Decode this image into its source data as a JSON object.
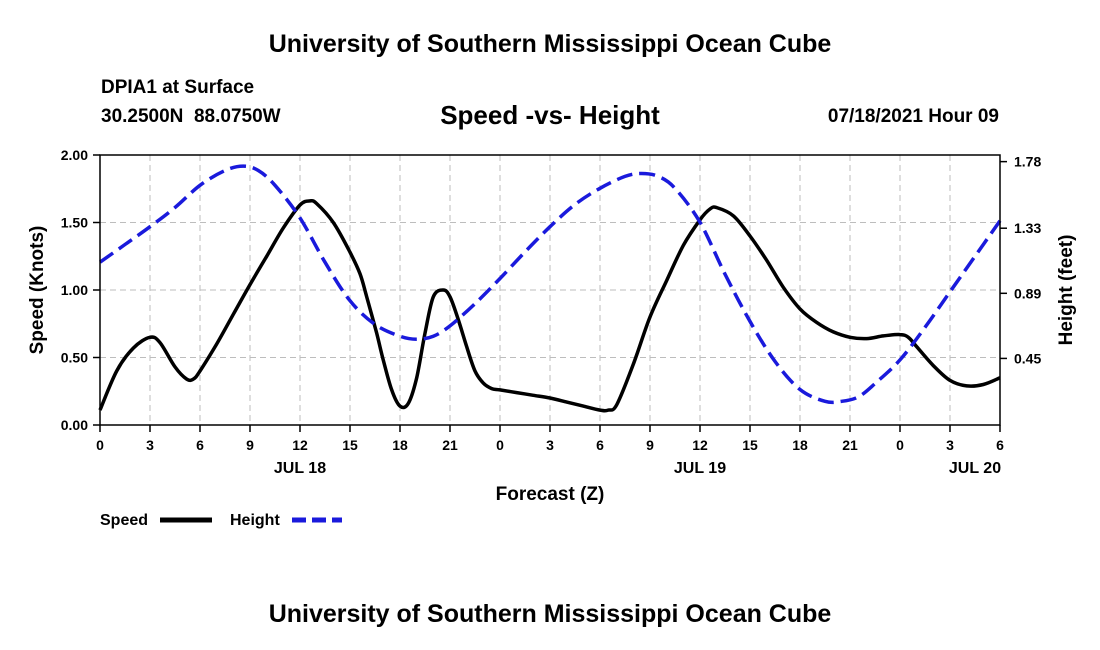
{
  "header": {
    "title": "University of Southern Mississippi Ocean Cube",
    "station": "DPIA1 at Surface",
    "coords": "30.2500N  88.0750W",
    "plot_title": "Speed -vs- Height",
    "datetime": "07/18/2021 Hour 09"
  },
  "footer": {
    "title": "University of Southern Mississippi Ocean Cube"
  },
  "chart_data": {
    "type": "line",
    "title": "Speed -vs- Height",
    "xlabel": "Forecast (Z)",
    "ylabel": "Speed (Knots)",
    "y2label": "Height (feet)",
    "ylim": [
      0,
      2.0
    ],
    "y2lim": [
      0,
      1.8248
    ],
    "x_range_hours": [
      0,
      54
    ],
    "x_ticks": [
      {
        "hour": 0,
        "label": "0"
      },
      {
        "hour": 3,
        "label": "3"
      },
      {
        "hour": 6,
        "label": "6"
      },
      {
        "hour": 9,
        "label": "9"
      },
      {
        "hour": 12,
        "label": "12"
      },
      {
        "hour": 15,
        "label": "15"
      },
      {
        "hour": 18,
        "label": "18"
      },
      {
        "hour": 21,
        "label": "21"
      },
      {
        "hour": 24,
        "label": "0"
      },
      {
        "hour": 27,
        "label": "3"
      },
      {
        "hour": 30,
        "label": "6"
      },
      {
        "hour": 33,
        "label": "9"
      },
      {
        "hour": 36,
        "label": "12"
      },
      {
        "hour": 39,
        "label": "15"
      },
      {
        "hour": 42,
        "label": "18"
      },
      {
        "hour": 45,
        "label": "21"
      },
      {
        "hour": 48,
        "label": "0"
      },
      {
        "hour": 51,
        "label": "3"
      },
      {
        "hour": 54,
        "label": "6"
      }
    ],
    "date_labels": [
      {
        "hour": 12,
        "label": "JUL 18"
      },
      {
        "hour": 36,
        "label": "JUL 19"
      },
      {
        "hour": 52.5,
        "label": "JUL 20"
      }
    ],
    "y_ticks": [
      {
        "value": 0,
        "label": "0.00"
      },
      {
        "value": 0.5,
        "label": "0.50"
      },
      {
        "value": 1.0,
        "label": "1.00"
      },
      {
        "value": 1.5,
        "label": "1.50"
      },
      {
        "value": 2.0,
        "label": "2.00"
      }
    ],
    "y2_ticks": [
      {
        "value": 0.45,
        "label": "0.45"
      },
      {
        "value": 0.89,
        "label": "0.89"
      },
      {
        "value": 1.33,
        "label": "1.33"
      },
      {
        "value": 1.78,
        "label": "1.78"
      }
    ],
    "grid": true,
    "legend": {
      "placement": "bottom-left",
      "speed_label": "Speed",
      "height_label": "Height"
    },
    "series": [
      {
        "name": "Speed",
        "axis": "left",
        "color": "#000000",
        "style": "solid",
        "x": [
          0,
          1,
          2,
          3,
          3.6,
          4.5,
          5.2,
          5.6,
          6,
          7,
          8,
          9,
          10,
          11,
          12,
          12.6,
          13,
          14,
          15,
          15.6,
          16,
          16.6,
          17,
          17.5,
          18,
          18.5,
          19,
          19.5,
          20,
          20.6,
          21,
          21.5,
          22,
          22.5,
          23,
          23.5,
          24,
          25,
          26,
          27,
          28,
          29,
          30,
          30.5,
          31,
          32,
          33,
          34,
          35,
          36,
          36.6,
          37,
          38,
          39,
          40,
          41,
          42,
          43,
          44,
          45,
          46,
          47,
          48,
          48.5,
          49,
          50,
          51,
          52,
          53,
          54
        ],
        "values": [
          0.11,
          0.4,
          0.57,
          0.65,
          0.61,
          0.43,
          0.34,
          0.34,
          0.4,
          0.6,
          0.82,
          1.04,
          1.25,
          1.46,
          1.63,
          1.66,
          1.64,
          1.5,
          1.28,
          1.12,
          0.95,
          0.68,
          0.48,
          0.26,
          0.14,
          0.16,
          0.35,
          0.68,
          0.95,
          1.0,
          0.95,
          0.78,
          0.58,
          0.4,
          0.31,
          0.27,
          0.26,
          0.24,
          0.22,
          0.2,
          0.17,
          0.14,
          0.11,
          0.11,
          0.15,
          0.45,
          0.8,
          1.07,
          1.33,
          1.52,
          1.6,
          1.61,
          1.55,
          1.4,
          1.22,
          1.02,
          0.86,
          0.76,
          0.69,
          0.65,
          0.64,
          0.66,
          0.67,
          0.65,
          0.58,
          0.44,
          0.33,
          0.29,
          0.3,
          0.35
        ]
      },
      {
        "name": "Height",
        "axis": "right",
        "color": "#1a1adc",
        "style": "dashed",
        "x": [
          0,
          1.5,
          3,
          4.5,
          6,
          7.5,
          8.6,
          9.5,
          10.5,
          12,
          13.5,
          15,
          16.5,
          18,
          19,
          20,
          21,
          22.5,
          24,
          25.5,
          27,
          28.5,
          30,
          31.5,
          32.5,
          33.5,
          34.5,
          36,
          37.5,
          39,
          40.5,
          42,
          43.5,
          44.5,
          45.5,
          46.5,
          48,
          49.5,
          51,
          52.5,
          54
        ],
        "values": [
          1.1,
          1.22,
          1.34,
          1.47,
          1.62,
          1.72,
          1.75,
          1.72,
          1.62,
          1.4,
          1.1,
          0.84,
          0.68,
          0.6,
          0.58,
          0.6,
          0.67,
          0.82,
          0.99,
          1.17,
          1.34,
          1.49,
          1.6,
          1.68,
          1.7,
          1.68,
          1.6,
          1.37,
          1.02,
          0.7,
          0.43,
          0.24,
          0.16,
          0.16,
          0.19,
          0.28,
          0.44,
          0.66,
          0.9,
          1.14,
          1.38
        ]
      }
    ]
  }
}
